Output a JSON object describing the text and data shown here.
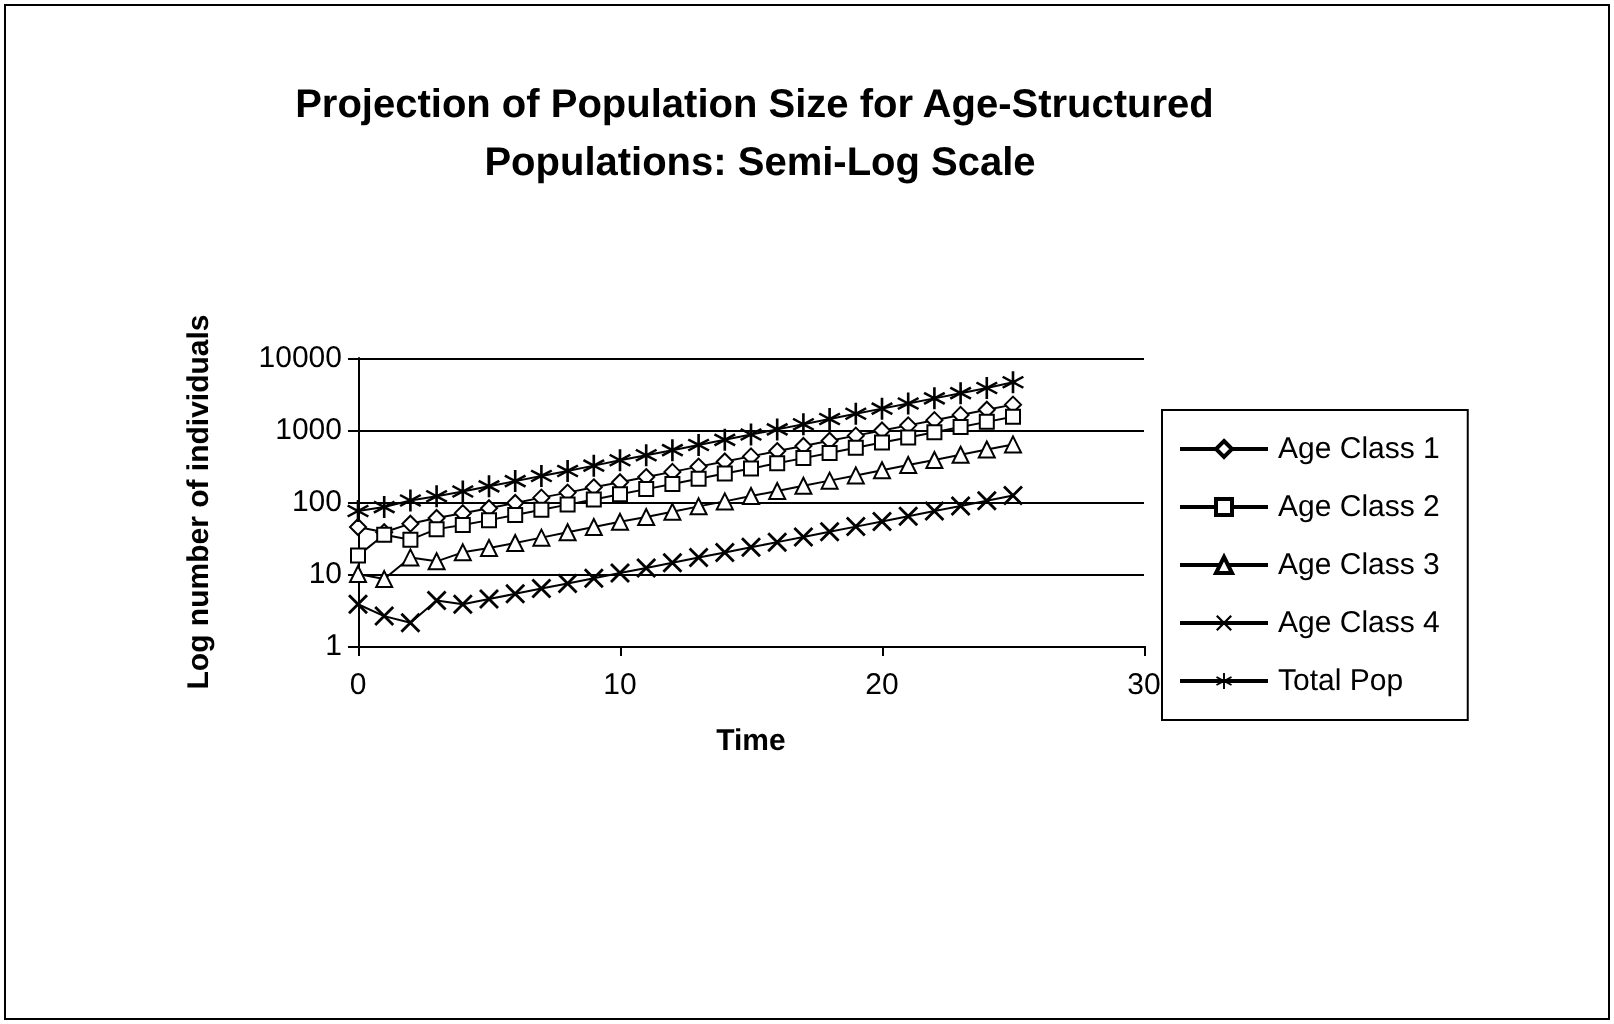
{
  "chart_data": {
    "type": "line",
    "title": "Projection of Population Size for Age-Structured Populations: Semi-Log Scale",
    "xlabel": "Time",
    "ylabel": "Log number of individuals",
    "x": [
      0,
      1,
      2,
      3,
      4,
      5,
      6,
      7,
      8,
      9,
      10,
      11,
      12,
      13,
      14,
      15,
      16,
      17,
      18,
      19,
      20,
      21,
      22,
      23,
      24,
      25
    ],
    "series": [
      {
        "name": "Age Class 1",
        "color": "#000000",
        "marker": "diamond",
        "values": [
          45,
          38,
          50,
          60,
          70,
          82,
          97,
          115,
          135,
          160,
          188,
          222,
          262,
          310,
          365,
          430,
          510,
          600,
          710,
          835,
          985,
          1160,
          1370,
          1620,
          1910,
          2250
        ]
      },
      {
        "name": "Age Class 2",
        "color": "#000000",
        "marker": "square",
        "values": [
          18,
          35,
          30,
          42,
          48,
          56,
          66,
          78,
          92,
          108,
          128,
          151,
          178,
          210,
          248,
          292,
          345,
          407,
          480,
          567,
          669,
          789,
          931,
          1099,
          1297,
          1530
        ]
      },
      {
        "name": "Age Class 3",
        "color": "#000000",
        "marker": "triangle",
        "values": [
          10,
          8.5,
          17,
          15,
          20,
          23,
          27,
          32,
          38,
          45,
          53,
          62,
          73,
          87,
          102,
          121,
          142,
          168,
          198,
          234,
          276,
          326,
          384,
          453,
          535,
          631
        ]
      },
      {
        "name": "Age Class 4",
        "color": "#000000",
        "marker": "cross",
        "values": [
          3.8,
          2.6,
          2.1,
          4.3,
          3.8,
          4.5,
          5.3,
          6.3,
          7.4,
          8.7,
          10.3,
          12.1,
          14.3,
          16.9,
          19.9,
          23.5,
          27.7,
          32.7,
          38.6,
          45.5,
          53.7,
          63.4,
          74.8,
          88.2,
          104,
          123
        ]
      },
      {
        "name": "Total Pop",
        "color": "#000000",
        "marker": "star",
        "values": [
          75,
          85,
          105,
          120,
          140,
          165,
          195,
          230,
          270,
          320,
          380,
          445,
          525,
          620,
          730,
          865,
          1020,
          1200,
          1420,
          1680,
          1980,
          2330,
          2750,
          3250,
          3830,
          4600
        ]
      }
    ],
    "log": "y",
    "xlim": [
      0,
      30
    ],
    "xticks": [
      0,
      10,
      20,
      30
    ],
    "ylim": [
      1,
      10000
    ],
    "yticks": [
      1,
      10,
      100,
      1000,
      10000
    ],
    "grid": "y",
    "legend": "right",
    "line_style": "solid"
  }
}
